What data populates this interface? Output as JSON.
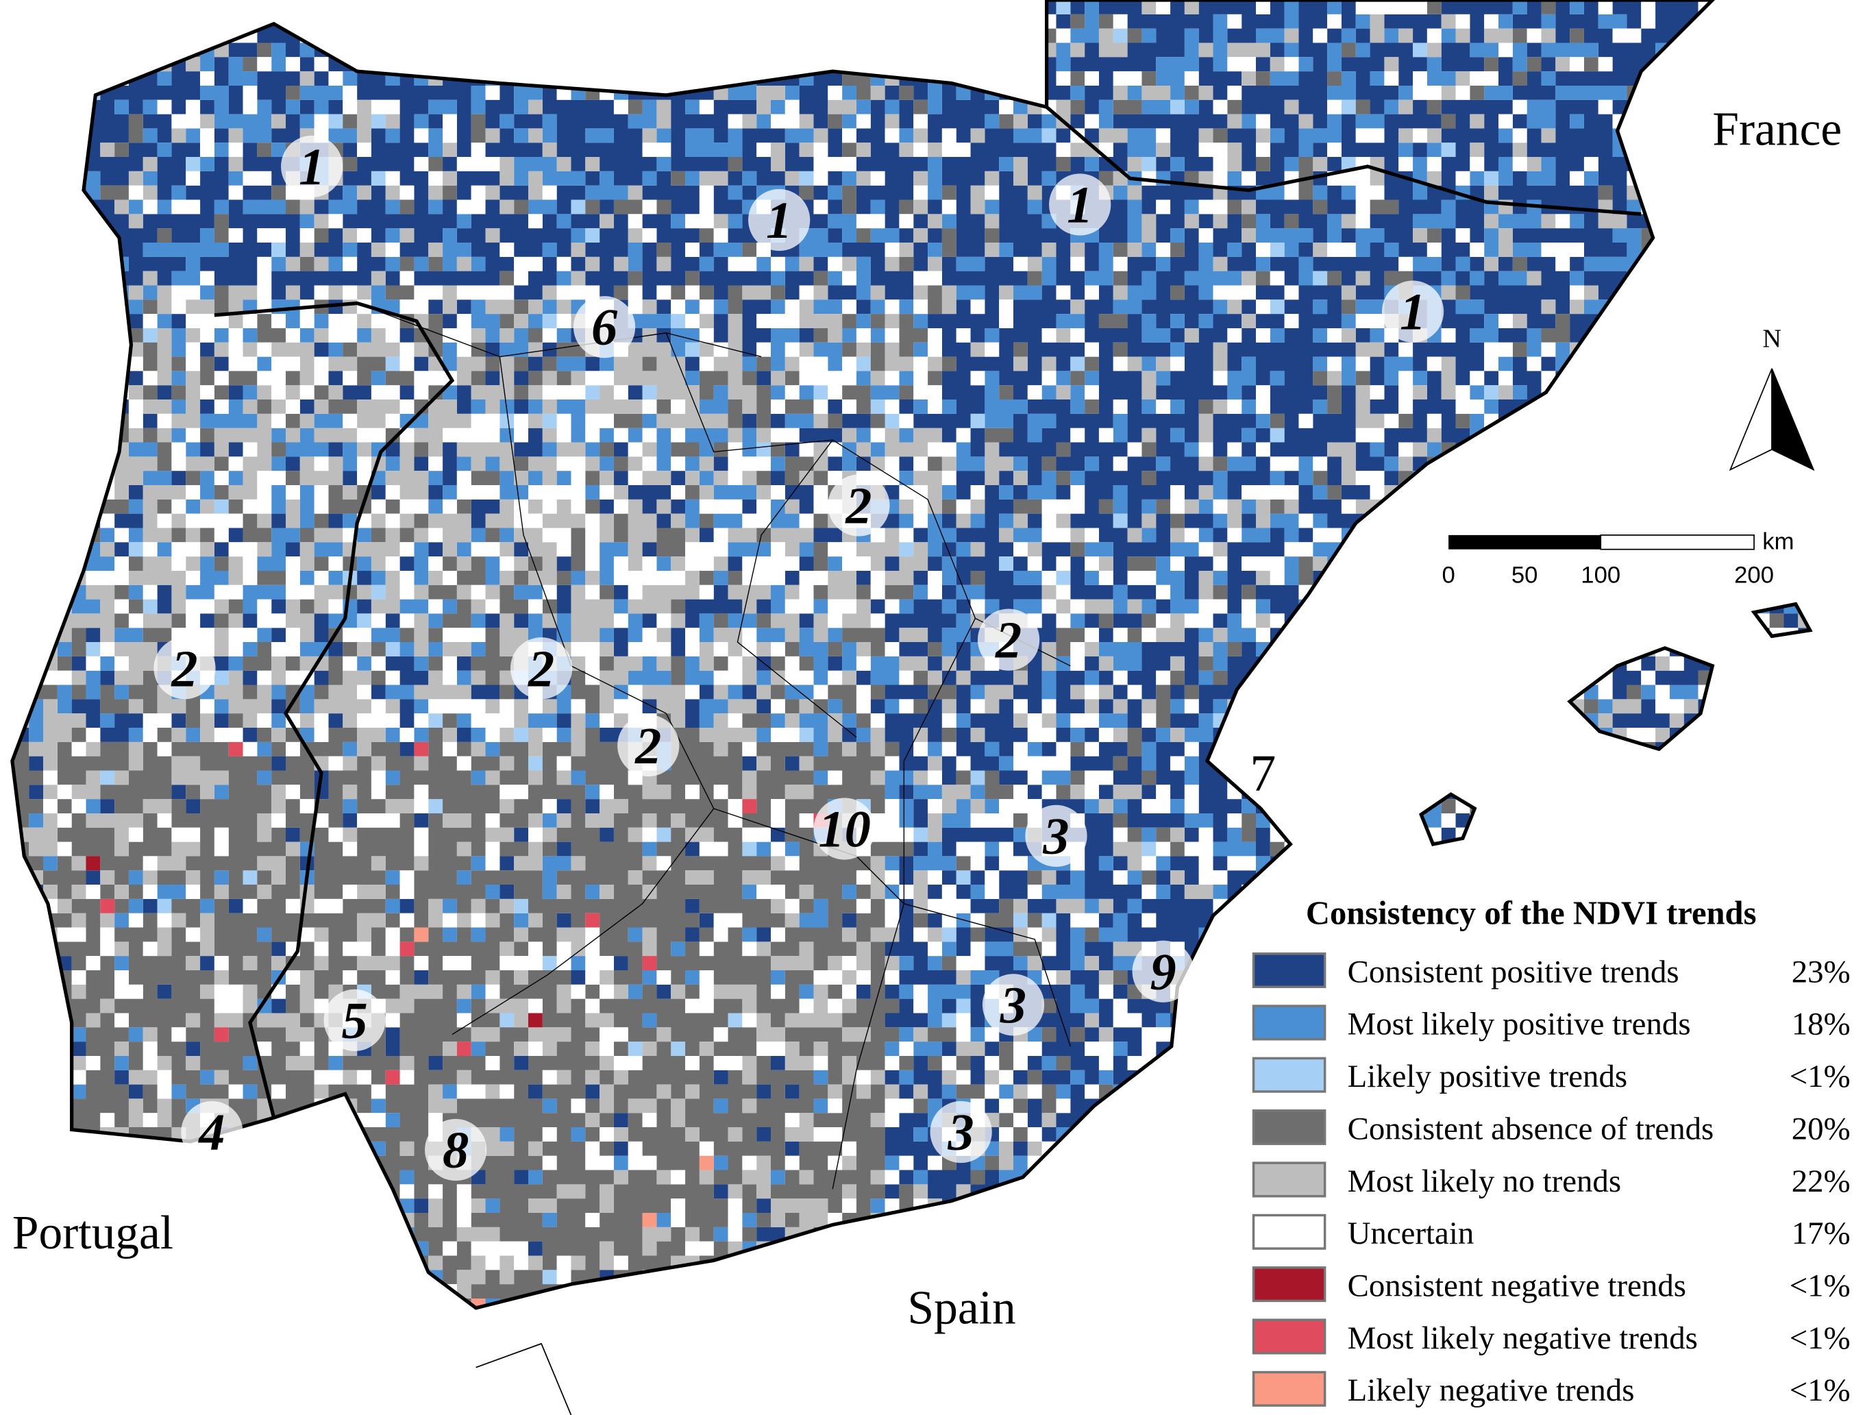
{
  "map": {
    "countries": [
      "France",
      "Portugal",
      "Spain"
    ],
    "north_label": "N",
    "scale_bar": {
      "unit": "km",
      "ticks": [
        "0",
        "50",
        "100",
        "200"
      ]
    },
    "region_markers": [
      "1",
      "1",
      "1",
      "1",
      "6",
      "2",
      "2",
      "2",
      "2",
      "2",
      "10",
      "3",
      "3",
      "3",
      "5",
      "4",
      "8",
      "9",
      "7"
    ],
    "legend": {
      "title": "Consistency of the NDVI trends",
      "items": [
        {
          "label": "Consistent positive trends",
          "share": "23%",
          "color": "#1f4287"
        },
        {
          "label": "Most likely positive trends",
          "share": "18%",
          "color": "#4a8fd4"
        },
        {
          "label": "Likely positive trends",
          "share": "<1%",
          "color": "#a6cff5"
        },
        {
          "label": "Consistent absence of trends",
          "share": "20%",
          "color": "#6e6e6e"
        },
        {
          "label": "Most likely no trends",
          "share": "22%",
          "color": "#bdbdbd"
        },
        {
          "label": "Uncertain",
          "share": "17%",
          "color": "#ffffff"
        },
        {
          "label": "Consistent negative trends",
          "share": "<1%",
          "color": "#a8162a"
        },
        {
          "label": "Most likely negative trends",
          "share": "<1%",
          "color": "#e04b5e"
        },
        {
          "label": "Likely negative trends",
          "share": "<1%",
          "color": "#fa9a84"
        }
      ]
    }
  }
}
